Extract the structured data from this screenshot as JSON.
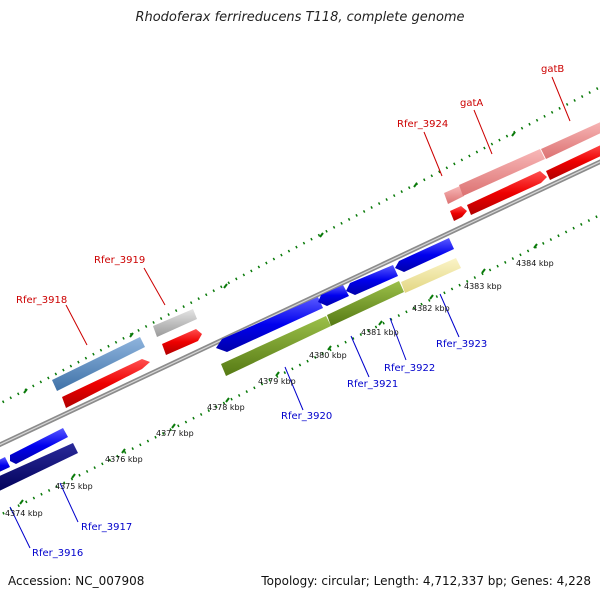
{
  "title": "Rhodoferax ferrireducens T118, complete genome",
  "accession_text": "Accession: NC_007908",
  "summary_text": "Topology: circular; Length: 4,712,337 bp; Genes: 4,228",
  "colors": {
    "top_label": "#cc0000",
    "bottom_label": "#0000cc",
    "tick": "#0a7a0a",
    "backbone": "#8c8c8c"
  },
  "top_genes": [
    "Rfer_3918",
    "Rfer_3919",
    "Rfer_3924",
    "gatA",
    "gatB"
  ],
  "bottom_genes": [
    "Rfer_3916",
    "Rfer_3917",
    "Rfer_3920",
    "Rfer_3921",
    "Rfer_3922",
    "Rfer_3923"
  ],
  "scale_labels": [
    "4374 kbp",
    "4375 kbp",
    "4376 kbp",
    "4377 kbp",
    "4378 kbp",
    "4379 kbp",
    "4380 kbp",
    "4381 kbp",
    "4382 kbp",
    "4383 kbp",
    "4384 kbp"
  ]
}
